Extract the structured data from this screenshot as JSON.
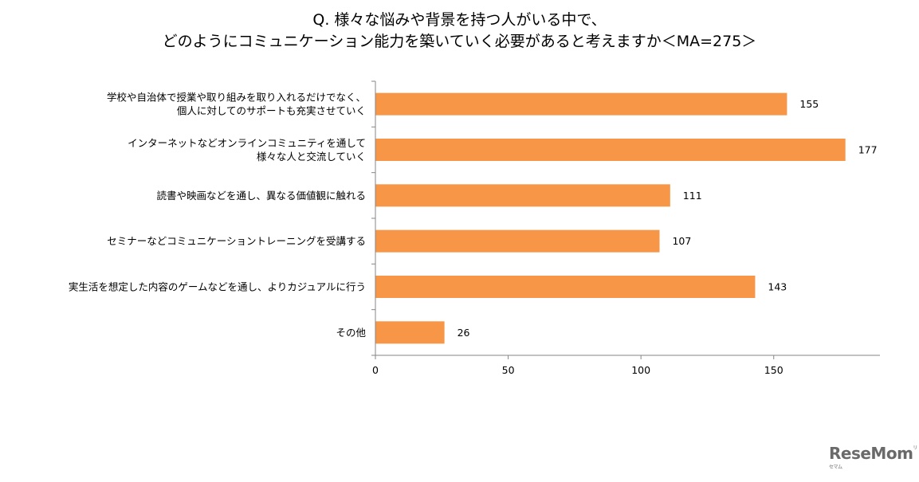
{
  "chart_data": {
    "type": "bar",
    "orientation": "horizontal",
    "title_lines": [
      "Q. 様々な悩みや背景を持つ人がいる中で、",
      "どのようにコミュニケーション能力を築いていく必要があると考えますか＜MA=275＞"
    ],
    "categories": [
      [
        "学校や自治体で授業や取り組みを取り入れるだけでなく、",
        "個人に対してのサポートも充実させていく"
      ],
      [
        "インターネットなどオンラインコミュニティを通して",
        "様々な人と交流していく"
      ],
      [
        "読書や映画などを通し、異なる価値観に触れる"
      ],
      [
        "セミナーなどコミュニケーショントレーニングを受講する"
      ],
      [
        "実生活を想定した内容のゲームなどを通し、よりカジュアルに行う"
      ],
      [
        "その他"
      ]
    ],
    "values": [
      155,
      177,
      111,
      107,
      143,
      26
    ],
    "xlim": [
      0,
      190
    ],
    "xticks": [
      0,
      50,
      100,
      150
    ],
    "bar_color": "#F79646",
    "axis_color": "#868686",
    "grid": false,
    "legend": "none"
  },
  "logo": {
    "text": "ReseMom",
    "sup": "リセマム"
  }
}
